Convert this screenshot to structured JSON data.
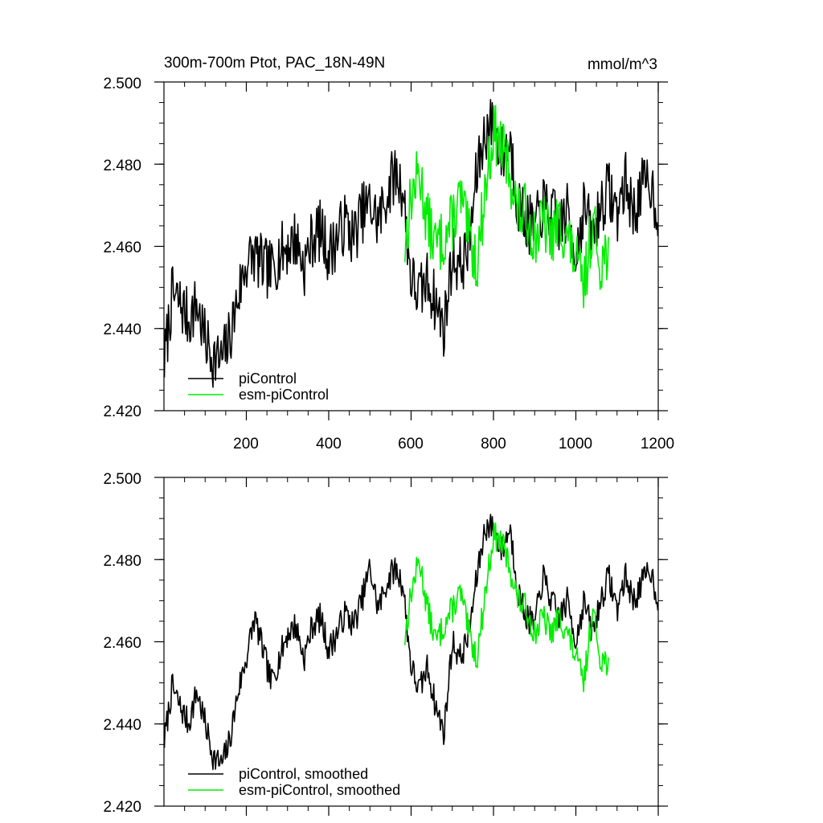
{
  "chart_data": [
    {
      "type": "line",
      "title": "300m-700m Ptot, PAC_18N-49N",
      "units": "mmol/m^3",
      "xlim": [
        0,
        1200
      ],
      "ylim": [
        2.42,
        2.5
      ],
      "xticks": [
        200,
        400,
        600,
        800,
        1000,
        1200
      ],
      "xtick_labels": [
        "200",
        "400",
        "600",
        "800",
        "1000",
        "1200"
      ],
      "yticks": [
        2.42,
        2.44,
        2.46,
        2.48,
        2.5
      ],
      "ytick_labels": [
        "2.420",
        "2.440",
        "2.460",
        "2.480",
        "2.500"
      ],
      "legend_position": "bottom-left",
      "series": [
        {
          "name": "piControl",
          "color": "#000000",
          "x_start": 1,
          "x_end": 1200,
          "anchors": [
            [
              1,
              2.432
            ],
            [
              20,
              2.448
            ],
            [
              40,
              2.446
            ],
            [
              60,
              2.442
            ],
            [
              80,
              2.446
            ],
            [
              100,
              2.437
            ],
            [
              120,
              2.433
            ],
            [
              140,
              2.432
            ],
            [
              160,
              2.438
            ],
            [
              180,
              2.448
            ],
            [
              200,
              2.456
            ],
            [
              220,
              2.458
            ],
            [
              240,
              2.455
            ],
            [
              260,
              2.454
            ],
            [
              280,
              2.458
            ],
            [
              300,
              2.46
            ],
            [
              320,
              2.462
            ],
            [
              340,
              2.455
            ],
            [
              360,
              2.462
            ],
            [
              380,
              2.464
            ],
            [
              400,
              2.458
            ],
            [
              420,
              2.462
            ],
            [
              440,
              2.466
            ],
            [
              460,
              2.462
            ],
            [
              480,
              2.468
            ],
            [
              500,
              2.47
            ],
            [
              520,
              2.466
            ],
            [
              540,
              2.472
            ],
            [
              560,
              2.478
            ],
            [
              580,
              2.474
            ],
            [
              600,
              2.452
            ],
            [
              620,
              2.448
            ],
            [
              640,
              2.452
            ],
            [
              660,
              2.446
            ],
            [
              680,
              2.44
            ],
            [
              700,
              2.458
            ],
            [
              720,
              2.455
            ],
            [
              740,
              2.46
            ],
            [
              760,
              2.478
            ],
            [
              780,
              2.488
            ],
            [
              800,
              2.49
            ],
            [
              820,
              2.482
            ],
            [
              840,
              2.486
            ],
            [
              860,
              2.47
            ],
            [
              880,
              2.466
            ],
            [
              900,
              2.464
            ],
            [
              920,
              2.47
            ],
            [
              940,
              2.468
            ],
            [
              960,
              2.465
            ],
            [
              980,
              2.468
            ],
            [
              1000,
              2.458
            ],
            [
              1020,
              2.47
            ],
            [
              1040,
              2.462
            ],
            [
              1060,
              2.47
            ],
            [
              1080,
              2.474
            ],
            [
              1100,
              2.468
            ],
            [
              1120,
              2.476
            ],
            [
              1140,
              2.468
            ],
            [
              1160,
              2.474
            ],
            [
              1180,
              2.476
            ],
            [
              1200,
              2.468
            ]
          ],
          "noise_amplitude": 0.0075,
          "seed": 7
        },
        {
          "name": "esm-piControl",
          "color": "#00ee00",
          "x_start": 585,
          "x_end": 1080,
          "anchors": [
            [
              585,
              2.46
            ],
            [
              600,
              2.472
            ],
            [
              620,
              2.478
            ],
            [
              640,
              2.466
            ],
            [
              660,
              2.46
            ],
            [
              680,
              2.462
            ],
            [
              700,
              2.466
            ],
            [
              720,
              2.472
            ],
            [
              740,
              2.462
            ],
            [
              760,
              2.456
            ],
            [
              780,
              2.474
            ],
            [
              800,
              2.488
            ],
            [
              820,
              2.484
            ],
            [
              840,
              2.478
            ],
            [
              860,
              2.468
            ],
            [
              880,
              2.468
            ],
            [
              900,
              2.462
            ],
            [
              920,
              2.466
            ],
            [
              940,
              2.462
            ],
            [
              960,
              2.466
            ],
            [
              980,
              2.462
            ],
            [
              1000,
              2.456
            ],
            [
              1020,
              2.45
            ],
            [
              1040,
              2.466
            ],
            [
              1060,
              2.456
            ],
            [
              1080,
              2.46
            ]
          ],
          "noise_amplitude": 0.0075,
          "seed": 13
        }
      ]
    },
    {
      "type": "line",
      "title": "",
      "xlim": [
        0,
        1200
      ],
      "ylim": [
        2.42,
        2.5
      ],
      "xticks": [
        200,
        400,
        600,
        800,
        1000,
        1200
      ],
      "yticks": [
        2.42,
        2.44,
        2.46,
        2.48,
        2.5
      ],
      "ytick_labels": [
        "2.420",
        "2.440",
        "2.460",
        "2.480",
        "2.500"
      ],
      "legend_position": "bottom-left",
      "series": [
        {
          "name": "piControl, smoothed",
          "color": "#000000",
          "x_start": 1,
          "x_end": 1200,
          "anchors": [
            [
              1,
              2.436
            ],
            [
              20,
              2.449
            ],
            [
              40,
              2.444
            ],
            [
              60,
              2.44
            ],
            [
              80,
              2.448
            ],
            [
              100,
              2.44
            ],
            [
              120,
              2.432
            ],
            [
              140,
              2.43
            ],
            [
              160,
              2.436
            ],
            [
              180,
              2.448
            ],
            [
              200,
              2.456
            ],
            [
              220,
              2.466
            ],
            [
              240,
              2.458
            ],
            [
              260,
              2.45
            ],
            [
              280,
              2.456
            ],
            [
              300,
              2.462
            ],
            [
              320,
              2.464
            ],
            [
              340,
              2.456
            ],
            [
              360,
              2.464
            ],
            [
              380,
              2.466
            ],
            [
              400,
              2.458
            ],
            [
              420,
              2.462
            ],
            [
              440,
              2.467
            ],
            [
              460,
              2.464
            ],
            [
              480,
              2.47
            ],
            [
              500,
              2.478
            ],
            [
              520,
              2.468
            ],
            [
              540,
              2.474
            ],
            [
              560,
              2.478
            ],
            [
              580,
              2.474
            ],
            [
              600,
              2.454
            ],
            [
              620,
              2.448
            ],
            [
              640,
              2.454
            ],
            [
              660,
              2.444
            ],
            [
              680,
              2.438
            ],
            [
              700,
              2.46
            ],
            [
              720,
              2.456
            ],
            [
              740,
              2.462
            ],
            [
              760,
              2.476
            ],
            [
              780,
              2.488
            ],
            [
              800,
              2.488
            ],
            [
              820,
              2.482
            ],
            [
              840,
              2.488
            ],
            [
              860,
              2.472
            ],
            [
              880,
              2.466
            ],
            [
              900,
              2.464
            ],
            [
              920,
              2.476
            ],
            [
              940,
              2.47
            ],
            [
              960,
              2.466
            ],
            [
              980,
              2.47
            ],
            [
              1000,
              2.46
            ],
            [
              1020,
              2.47
            ],
            [
              1040,
              2.462
            ],
            [
              1060,
              2.47
            ],
            [
              1080,
              2.476
            ],
            [
              1100,
              2.468
            ],
            [
              1120,
              2.476
            ],
            [
              1140,
              2.47
            ],
            [
              1160,
              2.474
            ],
            [
              1180,
              2.478
            ],
            [
              1200,
              2.47
            ]
          ],
          "noise_amplitude": 0.0035,
          "seed": 7
        },
        {
          "name": "esm-piControl, smoothed",
          "color": "#00ee00",
          "x_start": 585,
          "x_end": 1080,
          "anchors": [
            [
              585,
              2.461
            ],
            [
              600,
              2.472
            ],
            [
              620,
              2.48
            ],
            [
              640,
              2.468
            ],
            [
              660,
              2.46
            ],
            [
              680,
              2.464
            ],
            [
              700,
              2.468
            ],
            [
              720,
              2.472
            ],
            [
              740,
              2.462
            ],
            [
              760,
              2.456
            ],
            [
              780,
              2.472
            ],
            [
              800,
              2.486
            ],
            [
              820,
              2.484
            ],
            [
              840,
              2.478
            ],
            [
              860,
              2.47
            ],
            [
              880,
              2.468
            ],
            [
              900,
              2.462
            ],
            [
              920,
              2.466
            ],
            [
              940,
              2.462
            ],
            [
              960,
              2.466
            ],
            [
              980,
              2.462
            ],
            [
              1000,
              2.456
            ],
            [
              1020,
              2.45
            ],
            [
              1040,
              2.468
            ],
            [
              1060,
              2.456
            ],
            [
              1080,
              2.455
            ]
          ],
          "noise_amplitude": 0.0035,
          "seed": 13
        }
      ]
    }
  ]
}
